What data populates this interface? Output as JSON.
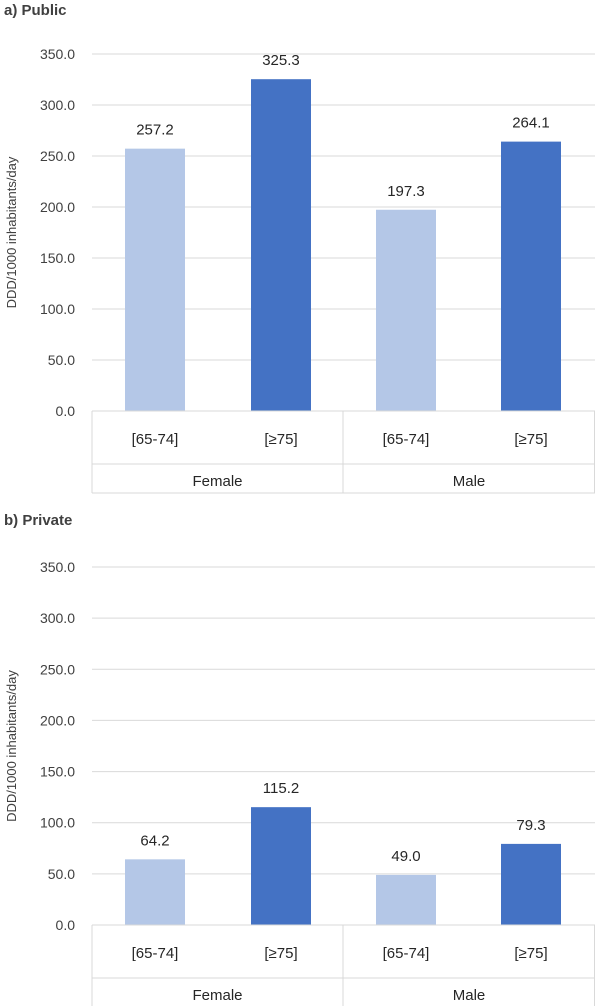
{
  "chart_data": [
    {
      "type": "bar",
      "title": "a) Public",
      "ylabel": "DDD/1000 inhabitants/day",
      "ylim": [
        0,
        350
      ],
      "yticks": [
        "0.0",
        "50.0",
        "100.0",
        "150.0",
        "200.0",
        "250.0",
        "300.0",
        "350.0"
      ],
      "grid": true,
      "groups": [
        "Female",
        "Male"
      ],
      "subcategories": [
        "[65-74]",
        "[≥75]"
      ],
      "values": [
        257.2,
        325.3,
        197.3,
        264.1
      ],
      "value_labels": [
        "257.2",
        "325.3",
        "197.3",
        "264.1"
      ],
      "colors": [
        "#b4c7e7",
        "#4472c4",
        "#b4c7e7",
        "#4472c4"
      ]
    },
    {
      "type": "bar",
      "title": "b) Private",
      "ylabel": "DDD/1000 inhabitants/day",
      "ylim": [
        0,
        350
      ],
      "yticks": [
        "0.0",
        "50.0",
        "100.0",
        "150.0",
        "200.0",
        "250.0",
        "300.0",
        "350.0"
      ],
      "grid": true,
      "groups": [
        "Female",
        "Male"
      ],
      "subcategories": [
        "[65-74]",
        "[≥75]"
      ],
      "values": [
        64.2,
        115.2,
        49.0,
        79.3
      ],
      "value_labels": [
        "64.2",
        "115.2",
        "49.0",
        "79.3"
      ],
      "colors": [
        "#b4c7e7",
        "#4472c4",
        "#b4c7e7",
        "#4472c4"
      ]
    }
  ]
}
